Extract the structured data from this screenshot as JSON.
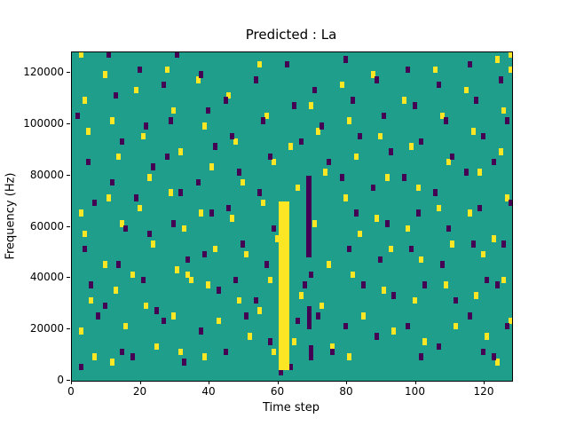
{
  "chart_data": {
    "type": "heatmap",
    "title": "Predicted : La",
    "xlabel": "Time step",
    "ylabel": "Frequency (Hz)",
    "xlim": [
      0,
      128
    ],
    "ylim_khz": [
      0,
      128
    ],
    "x_ticks": [
      0,
      20,
      40,
      60,
      80,
      100,
      120
    ],
    "y_ticks": [
      {
        "v": 0,
        "label": "0"
      },
      {
        "v": 20,
        "label": "20000"
      },
      {
        "v": 40,
        "label": "40000"
      },
      {
        "v": 60,
        "label": "60000"
      },
      {
        "v": 80,
        "label": "80000"
      },
      {
        "v": 100,
        "label": "100000"
      },
      {
        "v": 120,
        "label": "120000"
      }
    ],
    "legend": "none",
    "grid": false,
    "colors": {
      "background": "#1f9e8c",
      "high": "#fde725",
      "low": "#440154",
      "axis": "#000000"
    },
    "cell_size": {
      "w_steps": 1.3,
      "h_khz": 2.6
    },
    "cells": {
      "yellow": [
        [
          2,
          126
        ],
        [
          3,
          108
        ],
        [
          4,
          96
        ],
        [
          2,
          64
        ],
        [
          3,
          56
        ],
        [
          5,
          30
        ],
        [
          2,
          18
        ],
        [
          6,
          8
        ],
        [
          9,
          118
        ],
        [
          11,
          100
        ],
        [
          13,
          86
        ],
        [
          10,
          70
        ],
        [
          14,
          60
        ],
        [
          9,
          44
        ],
        [
          12,
          34
        ],
        [
          15,
          20
        ],
        [
          11,
          6
        ],
        [
          18,
          112
        ],
        [
          20,
          94
        ],
        [
          22,
          78
        ],
        [
          19,
          66
        ],
        [
          23,
          52
        ],
        [
          17,
          40
        ],
        [
          21,
          28
        ],
        [
          24,
          12
        ],
        [
          27,
          120
        ],
        [
          29,
          104
        ],
        [
          31,
          88
        ],
        [
          28,
          72
        ],
        [
          32,
          58
        ],
        [
          30,
          42
        ],
        [
          33,
          40
        ],
        [
          34,
          38
        ],
        [
          29,
          24
        ],
        [
          31,
          10
        ],
        [
          36,
          116
        ],
        [
          38,
          98
        ],
        [
          40,
          82
        ],
        [
          37,
          64
        ],
        [
          41,
          50
        ],
        [
          39,
          36
        ],
        [
          42,
          22
        ],
        [
          38,
          8
        ],
        [
          45,
          110
        ],
        [
          47,
          92
        ],
        [
          49,
          76
        ],
        [
          46,
          62
        ],
        [
          50,
          48
        ],
        [
          48,
          30
        ],
        [
          51,
          16
        ],
        [
          54,
          122
        ],
        [
          56,
          102
        ],
        [
          58,
          84
        ],
        [
          55,
          68
        ],
        [
          59,
          54
        ],
        [
          57,
          38
        ],
        [
          54,
          26
        ],
        [
          58,
          10
        ],
        [
          63,
          90
        ],
        [
          65,
          74
        ],
        [
          62,
          46
        ],
        [
          66,
          32
        ],
        [
          64,
          14
        ],
        [
          69,
          106
        ],
        [
          71,
          96
        ],
        [
          73,
          80
        ],
        [
          70,
          60
        ],
        [
          74,
          44
        ],
        [
          72,
          28
        ],
        [
          75,
          12
        ],
        [
          78,
          114
        ],
        [
          80,
          100
        ],
        [
          82,
          86
        ],
        [
          79,
          70
        ],
        [
          83,
          56
        ],
        [
          81,
          40
        ],
        [
          84,
          24
        ],
        [
          80,
          8
        ],
        [
          87,
          118
        ],
        [
          89,
          94
        ],
        [
          91,
          78
        ],
        [
          88,
          62
        ],
        [
          92,
          50
        ],
        [
          90,
          34
        ],
        [
          93,
          18
        ],
        [
          96,
          108
        ],
        [
          98,
          90
        ],
        [
          100,
          74
        ],
        [
          97,
          58
        ],
        [
          101,
          46
        ],
        [
          99,
          30
        ],
        [
          102,
          14
        ],
        [
          105,
          120
        ],
        [
          107,
          102
        ],
        [
          109,
          84
        ],
        [
          106,
          66
        ],
        [
          110,
          52
        ],
        [
          108,
          36
        ],
        [
          111,
          20
        ],
        [
          114,
          112
        ],
        [
          116,
          96
        ],
        [
          118,
          80
        ],
        [
          115,
          64
        ],
        [
          119,
          48
        ],
        [
          117,
          32
        ],
        [
          120,
          16
        ],
        [
          123,
          124
        ],
        [
          125,
          104
        ],
        [
          127,
          126
        ],
        [
          127,
          120
        ],
        [
          124,
          88
        ],
        [
          126,
          70
        ],
        [
          122,
          54
        ],
        [
          125,
          38
        ],
        [
          127,
          22
        ],
        [
          123,
          6
        ]
      ],
      "dark": [
        [
          1,
          102
        ],
        [
          4,
          84
        ],
        [
          6,
          68
        ],
        [
          3,
          50
        ],
        [
          5,
          36
        ],
        [
          7,
          24
        ],
        [
          2,
          4
        ],
        [
          10,
          126
        ],
        [
          12,
          110
        ],
        [
          14,
          92
        ],
        [
          11,
          76
        ],
        [
          15,
          58
        ],
        [
          13,
          44
        ],
        [
          9,
          28
        ],
        [
          14,
          10
        ],
        [
          19,
          120
        ],
        [
          21,
          98
        ],
        [
          23,
          82
        ],
        [
          18,
          70
        ],
        [
          22,
          56
        ],
        [
          20,
          38
        ],
        [
          24,
          26
        ],
        [
          17,
          8
        ],
        [
          26,
          114
        ],
        [
          28,
          100
        ],
        [
          30,
          126
        ],
        [
          27,
          86
        ],
        [
          31,
          72
        ],
        [
          29,
          60
        ],
        [
          33,
          46
        ],
        [
          26,
          22
        ],
        [
          32,
          6
        ],
        [
          37,
          118
        ],
        [
          39,
          104
        ],
        [
          41,
          90
        ],
        [
          36,
          76
        ],
        [
          40,
          64
        ],
        [
          38,
          48
        ],
        [
          42,
          34
        ],
        [
          37,
          18
        ],
        [
          44,
          108
        ],
        [
          46,
          94
        ],
        [
          48,
          80
        ],
        [
          45,
          66
        ],
        [
          49,
          52
        ],
        [
          47,
          38
        ],
        [
          50,
          24
        ],
        [
          44,
          10
        ],
        [
          53,
          116
        ],
        [
          55,
          100
        ],
        [
          57,
          86
        ],
        [
          54,
          72
        ],
        [
          58,
          58
        ],
        [
          56,
          44
        ],
        [
          53,
          30
        ],
        [
          57,
          14
        ],
        [
          60,
          2
        ],
        [
          62,
          122
        ],
        [
          64,
          106
        ],
        [
          66,
          92
        ],
        [
          67,
          36
        ],
        [
          65,
          22
        ],
        [
          63,
          4
        ],
        [
          70,
          112
        ],
        [
          72,
          98
        ],
        [
          74,
          84
        ],
        [
          71,
          24
        ],
        [
          75,
          10
        ],
        [
          69,
          40
        ],
        [
          79,
          124
        ],
        [
          81,
          108
        ],
        [
          83,
          94
        ],
        [
          78,
          78
        ],
        [
          82,
          64
        ],
        [
          80,
          50
        ],
        [
          84,
          36
        ],
        [
          79,
          20
        ],
        [
          88,
          116
        ],
        [
          90,
          102
        ],
        [
          92,
          88
        ],
        [
          87,
          74
        ],
        [
          91,
          60
        ],
        [
          89,
          46
        ],
        [
          93,
          32
        ],
        [
          88,
          16
        ],
        [
          97,
          120
        ],
        [
          99,
          106
        ],
        [
          101,
          92
        ],
        [
          96,
          78
        ],
        [
          100,
          64
        ],
        [
          98,
          50
        ],
        [
          102,
          36
        ],
        [
          97,
          20
        ],
        [
          101,
          8
        ],
        [
          106,
          114
        ],
        [
          108,
          100
        ],
        [
          110,
          86
        ],
        [
          105,
          72
        ],
        [
          109,
          58
        ],
        [
          107,
          44
        ],
        [
          111,
          30
        ],
        [
          106,
          12
        ],
        [
          115,
          122
        ],
        [
          117,
          108
        ],
        [
          119,
          94
        ],
        [
          114,
          80
        ],
        [
          118,
          66
        ],
        [
          116,
          52
        ],
        [
          120,
          38
        ],
        [
          115,
          24
        ],
        [
          119,
          10
        ],
        [
          124,
          116
        ],
        [
          126,
          100
        ],
        [
          122,
          84
        ],
        [
          127,
          68
        ],
        [
          125,
          52
        ],
        [
          123,
          36
        ],
        [
          126,
          20
        ],
        [
          122,
          8
        ]
      ]
    },
    "bands": {
      "yellow": [
        {
          "x": 60,
          "y": 4,
          "w": 3.2,
          "h": 66
        }
      ],
      "dark": [
        {
          "x": 68,
          "y": 48,
          "w": 1.6,
          "h": 32
        },
        {
          "x": 68.5,
          "y": 20,
          "w": 1.2,
          "h": 9
        },
        {
          "x": 69,
          "y": 8,
          "w": 1.2,
          "h": 6
        }
      ]
    }
  }
}
